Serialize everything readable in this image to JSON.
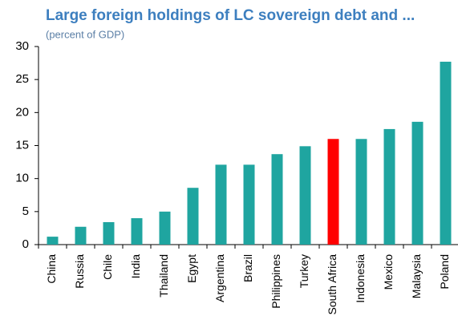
{
  "chart_data": {
    "type": "bar",
    "title": "Large foreign holdings of LC sovereign debt and ...",
    "subtitle": "(percent of GDP)",
    "categories": [
      "China",
      "Russia",
      "Chile",
      "India",
      "Thailand",
      "Egypt",
      "Argentina",
      "Brazil",
      "Philippines",
      "Turkey",
      "South Africa",
      "Indonesia",
      "Mexico",
      "Malaysia",
      "Poland"
    ],
    "values": [
      1.2,
      2.7,
      3.4,
      4.0,
      5.0,
      8.6,
      12.1,
      12.1,
      13.7,
      14.9,
      16.0,
      16.0,
      17.5,
      18.6,
      27.7
    ],
    "colors": [
      "#1fa5a0",
      "#1fa5a0",
      "#1fa5a0",
      "#1fa5a0",
      "#1fa5a0",
      "#1fa5a0",
      "#1fa5a0",
      "#1fa5a0",
      "#1fa5a0",
      "#1fa5a0",
      "#ff0000",
      "#1fa5a0",
      "#1fa5a0",
      "#1fa5a0",
      "#1fa5a0"
    ],
    "ylim": [
      0,
      30
    ],
    "yticks": [
      0,
      5,
      10,
      15,
      20,
      25,
      30
    ],
    "grid": false
  }
}
